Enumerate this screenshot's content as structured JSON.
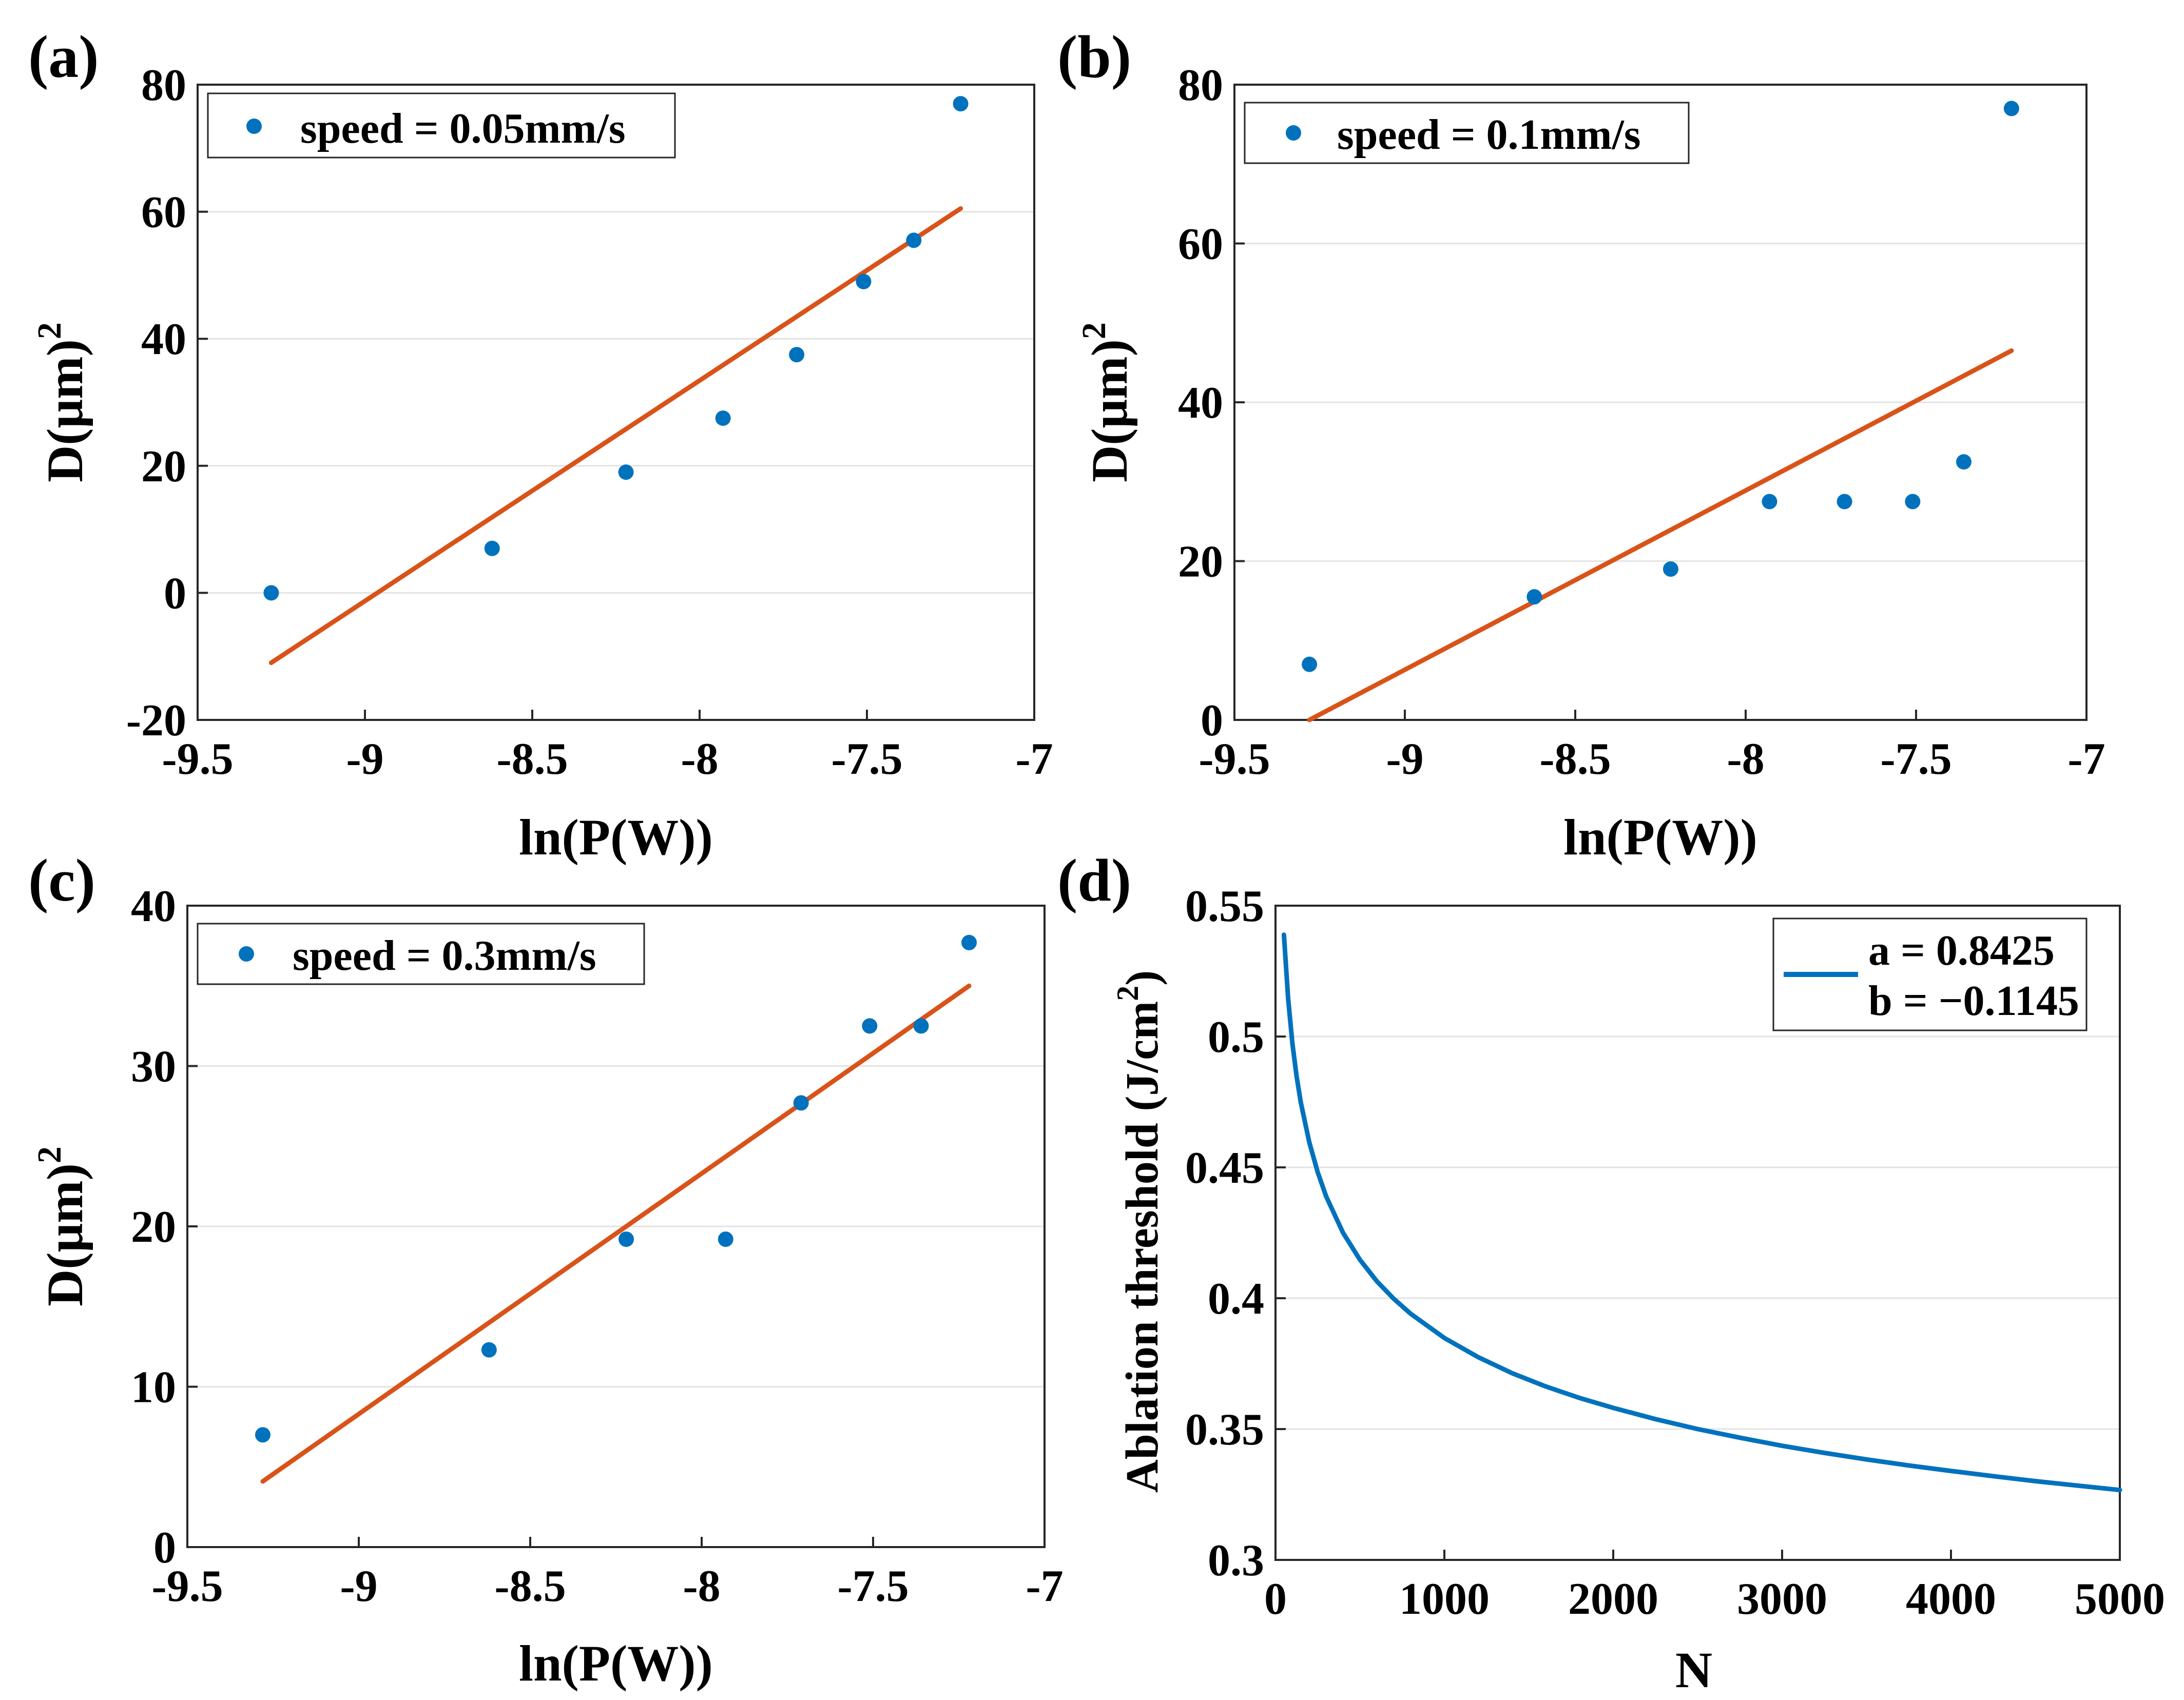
{
  "figure": {
    "panels": [
      {
        "panel_label": "(a)",
        "legend_entries": [
          "speed = 0.05mm/s"
        ]
      },
      {
        "panel_label": "(b)",
        "legend_entries": [
          "speed = 0.1mm/s"
        ]
      },
      {
        "panel_label": "(c)",
        "legend_entries": [
          "speed = 0.3mm/s"
        ]
      },
      {
        "panel_label": "(d)",
        "legend_entries": [
          "a = 0.8425",
          "b = −0.1145"
        ]
      }
    ]
  },
  "colors": {
    "points": "#0072BD",
    "fit_line": "#D95319",
    "curve": "#0072BD",
    "grid": "#e3e3e3",
    "axes": "#262626"
  },
  "chart_data": [
    {
      "type": "scatter",
      "title": "",
      "xlabel": "ln(P(W))",
      "ylabel": "D(μm)",
      "ylabel_superscript": "2",
      "xlim": [
        -9.5,
        -7
      ],
      "ylim": [
        -20,
        80
      ],
      "xticks": [
        -9.5,
        -9,
        -8.5,
        -8,
        -7.5,
        -7
      ],
      "xtick_labels": [
        "-9.5",
        "-9",
        "-8.5",
        "-8",
        "-7.5",
        "-7"
      ],
      "yticks": [
        -20,
        0,
        20,
        40,
        60,
        80
      ],
      "ytick_labels": [
        "-20",
        "0",
        "20",
        "40",
        "60",
        "80"
      ],
      "grid": "horizontal",
      "legend_position": "top-left",
      "series": [
        {
          "name": "speed = 0.05mm/s",
          "kind": "scatter",
          "x": [
            -9.28,
            -8.62,
            -8.22,
            -7.93,
            -7.71,
            -7.51,
            -7.36,
            -7.22
          ],
          "y": [
            0,
            7,
            19,
            27.5,
            37.5,
            49,
            55.5,
            77
          ]
        },
        {
          "name": "linear fit",
          "kind": "line",
          "x": [
            -9.28,
            -7.22
          ],
          "y": [
            -11,
            60.5
          ]
        }
      ]
    },
    {
      "type": "scatter",
      "title": "",
      "xlabel": "ln(P(W))",
      "ylabel": "D(μm)",
      "ylabel_superscript": "2",
      "xlim": [
        -9.5,
        -7
      ],
      "ylim": [
        0,
        80
      ],
      "xticks": [
        -9.5,
        -9,
        -8.5,
        -8,
        -7.5,
        -7
      ],
      "xtick_labels": [
        "-9.5",
        "-9",
        "-8.5",
        "-8",
        "-7.5",
        "-7"
      ],
      "yticks": [
        0,
        20,
        40,
        60,
        80
      ],
      "ytick_labels": [
        "0",
        "20",
        "40",
        "60",
        "80"
      ],
      "grid": "horizontal",
      "legend_position": "top-left",
      "series": [
        {
          "name": "speed = 0.1mm/s",
          "kind": "scatter",
          "x": [
            -9.28,
            -8.62,
            -8.22,
            -7.93,
            -7.71,
            -7.51,
            -7.36,
            -7.22
          ],
          "y": [
            7,
            15.5,
            19,
            27.5,
            27.5,
            27.5,
            32.5,
            77
          ]
        },
        {
          "name": "linear fit",
          "kind": "line",
          "x": [
            -9.28,
            -7.22
          ],
          "y": [
            0,
            46.5
          ]
        }
      ]
    },
    {
      "type": "scatter",
      "title": "",
      "xlabel": "ln(P(W))",
      "ylabel": "D(μm)",
      "ylabel_superscript": "2",
      "xlim": [
        -9.5,
        -7
      ],
      "ylim": [
        0,
        40
      ],
      "xticks": [
        -9.5,
        -9,
        -8.5,
        -8,
        -7.5,
        -7
      ],
      "xtick_labels": [
        "-9.5",
        "-9",
        "-8.5",
        "-8",
        "-7.5",
        "-7"
      ],
      "yticks": [
        0,
        10,
        20,
        30,
        40
      ],
      "ytick_labels": [
        "0",
        "10",
        "20",
        "30",
        "40"
      ],
      "grid": "horizontal",
      "legend_position": "top-left",
      "series": [
        {
          "name": "speed = 0.3mm/s",
          "kind": "scatter",
          "x": [
            -9.28,
            -8.62,
            -8.22,
            -7.93,
            -7.71,
            -7.51,
            -7.36,
            -7.22
          ],
          "y": [
            7,
            12.3,
            19.2,
            19.2,
            27.7,
            32.5,
            32.5,
            37.7
          ]
        },
        {
          "name": "linear fit",
          "kind": "line",
          "x": [
            -9.28,
            -7.22
          ],
          "y": [
            4.1,
            35
          ]
        }
      ]
    },
    {
      "type": "line",
      "title": "",
      "xlabel": "N",
      "ylabel": "Ablation threshold (J/cm",
      "ylabel_superscript": "2",
      "ylabel_suffix": ")",
      "xlim": [
        0,
        5000
      ],
      "ylim": [
        0.3,
        0.55
      ],
      "xticks": [
        0,
        1000,
        2000,
        3000,
        4000,
        5000
      ],
      "xtick_labels": [
        "0",
        "1000",
        "2000",
        "3000",
        "4000",
        "5000"
      ],
      "yticks": [
        0.3,
        0.35,
        0.4,
        0.45,
        0.5,
        0.55
      ],
      "ytick_labels": [
        "0.3",
        "0.35",
        "0.4",
        "0.45",
        "0.5",
        "0.55"
      ],
      "grid": "horizontal",
      "legend_position": "top-right",
      "series": [
        {
          "name": "a = 0.8425, b = −0.1145",
          "kind": "line",
          "x": [
            50,
            75,
            100,
            125,
            150,
            200,
            250,
            300,
            400,
            500,
            600,
            700,
            800,
            1000,
            1200,
            1400,
            1600,
            1800,
            2000,
            2250,
            2500,
            2750,
            3000,
            3250,
            3500,
            3750,
            4000,
            4250,
            4500,
            4750,
            5000
          ],
          "y": [
            0.5389,
            0.5143,
            0.4974,
            0.4848,
            0.4748,
            0.4596,
            0.4481,
            0.4389,
            0.425,
            0.4147,
            0.4065,
            0.3998,
            0.3941,
            0.3848,
            0.3775,
            0.3714,
            0.3663,
            0.3619,
            0.3581,
            0.3538,
            0.35,
            0.3467,
            0.3436,
            0.3409,
            0.3384,
            0.3361,
            0.334,
            0.332,
            0.3301,
            0.3284,
            0.3267
          ]
        }
      ]
    }
  ]
}
